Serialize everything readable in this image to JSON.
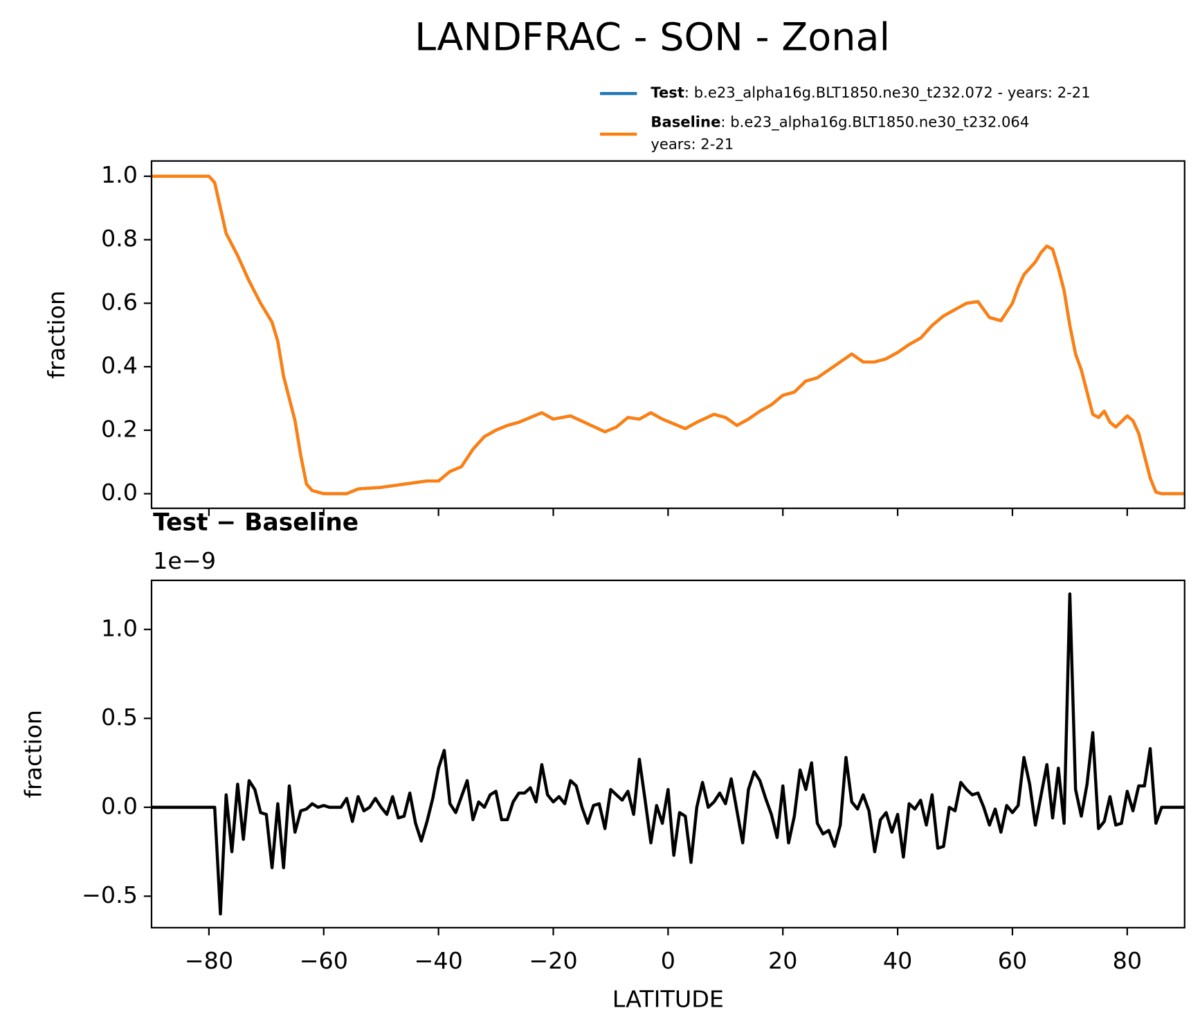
{
  "title": "LANDFRAC - SON - Zonal",
  "chart_data": [
    {
      "type": "line",
      "ylabel": "fraction",
      "xlim": [
        -90,
        90
      ],
      "ylim": [
        -0.046,
        1.048
      ],
      "xticks": [
        -80,
        -60,
        -40,
        -20,
        0,
        20,
        40,
        60,
        80
      ],
      "xticklabels": false,
      "yticks": [
        {
          "value": 0.0,
          "label": "0.0"
        },
        0.2,
        0.4,
        0.6,
        0.8,
        {
          "value": 1.0,
          "label": "1.0"
        }
      ],
      "legend": "upper right",
      "x": [
        -90,
        -80,
        -79,
        -78,
        -77,
        -75,
        -73,
        -71,
        -69,
        -68,
        -67,
        -65,
        -64,
        -63,
        -62,
        -60,
        -56,
        -54,
        -50,
        -46,
        -42,
        -40,
        -38,
        -36,
        -34,
        -32,
        -30,
        -28,
        -26,
        -24,
        -22,
        -20,
        -17,
        -14,
        -11,
        -9,
        -7,
        -5,
        -3,
        -1,
        1,
        3,
        5,
        8,
        10,
        12,
        14,
        16,
        18,
        20,
        22,
        24,
        26,
        28,
        30,
        32,
        34,
        36,
        38,
        40,
        42,
        44,
        46,
        48,
        50,
        52,
        54,
        56,
        58,
        60,
        61,
        62,
        64,
        65,
        66,
        67,
        68,
        69,
        70,
        71,
        72,
        74,
        75,
        76,
        77,
        78,
        80,
        81,
        82,
        83,
        84,
        85,
        86,
        90
      ],
      "series": [
        {
          "name": "Test",
          "description": [
            ": b.e23_alpha16g.BLT1850.ne30_t232.072 - years: 2-21"
          ],
          "color": "#1f77b4",
          "values": [
            1.0,
            1.0,
            0.98,
            0.9,
            0.82,
            0.75,
            0.67,
            0.6,
            0.54,
            0.48,
            0.37,
            0.23,
            0.12,
            0.03,
            0.01,
            0.0,
            0.0,
            0.015,
            0.02,
            0.03,
            0.04,
            0.04,
            0.07,
            0.085,
            0.14,
            0.18,
            0.2,
            0.215,
            0.225,
            0.24,
            0.255,
            0.235,
            0.245,
            0.22,
            0.195,
            0.21,
            0.24,
            0.235,
            0.255,
            0.235,
            0.22,
            0.205,
            0.225,
            0.25,
            0.24,
            0.215,
            0.235,
            0.26,
            0.28,
            0.31,
            0.32,
            0.355,
            0.365,
            0.39,
            0.415,
            0.44,
            0.415,
            0.415,
            0.425,
            0.445,
            0.47,
            0.49,
            0.53,
            0.56,
            0.58,
            0.6,
            0.605,
            0.555,
            0.545,
            0.6,
            0.65,
            0.69,
            0.73,
            0.76,
            0.78,
            0.77,
            0.71,
            0.64,
            0.53,
            0.44,
            0.39,
            0.25,
            0.24,
            0.26,
            0.225,
            0.21,
            0.245,
            0.23,
            0.19,
            0.12,
            0.05,
            0.005,
            0.0,
            0.0
          ]
        },
        {
          "name": "Baseline",
          "description": [
            ": b.e23_alpha16g.BLT1850.ne30_t232.064",
            "years: 2-21"
          ],
          "color": "#ff7f0e",
          "values": [
            1.0,
            1.0,
            0.98,
            0.9,
            0.82,
            0.75,
            0.67,
            0.6,
            0.54,
            0.48,
            0.37,
            0.23,
            0.12,
            0.03,
            0.01,
            0.0,
            0.0,
            0.015,
            0.02,
            0.03,
            0.04,
            0.04,
            0.07,
            0.085,
            0.14,
            0.18,
            0.2,
            0.215,
            0.225,
            0.24,
            0.255,
            0.235,
            0.245,
            0.22,
            0.195,
            0.21,
            0.24,
            0.235,
            0.255,
            0.235,
            0.22,
            0.205,
            0.225,
            0.25,
            0.24,
            0.215,
            0.235,
            0.26,
            0.28,
            0.31,
            0.32,
            0.355,
            0.365,
            0.39,
            0.415,
            0.44,
            0.415,
            0.415,
            0.425,
            0.445,
            0.47,
            0.49,
            0.53,
            0.56,
            0.58,
            0.6,
            0.605,
            0.555,
            0.545,
            0.6,
            0.65,
            0.69,
            0.73,
            0.76,
            0.78,
            0.77,
            0.71,
            0.64,
            0.53,
            0.44,
            0.39,
            0.25,
            0.24,
            0.26,
            0.225,
            0.21,
            0.245,
            0.23,
            0.19,
            0.12,
            0.05,
            0.005,
            0.0,
            0.0
          ]
        }
      ]
    },
    {
      "type": "line",
      "title": "Test − Baseline",
      "offset_label": "1e−9",
      "xlabel": "LATITUDE",
      "ylabel": "fraction",
      "xlim": [
        -90,
        90
      ],
      "ylim": [
        -0.677,
        1.276
      ],
      "xticks": [
        {
          "value": -80,
          "label": "−80"
        },
        {
          "value": -60,
          "label": "−60"
        },
        {
          "value": -40,
          "label": "−40"
        },
        {
          "value": -20,
          "label": "−20"
        },
        0,
        20,
        40,
        60,
        80
      ],
      "xticklabels": true,
      "yticks": [
        {
          "value": -0.5,
          "label": "−0.5"
        },
        {
          "value": 0.0,
          "label": "0.0"
        },
        0.5,
        {
          "value": 1.0,
          "label": "1.0"
        }
      ],
      "color": "#000000",
      "x": [
        -90,
        -89,
        -88,
        -87,
        -86,
        -85,
        -84,
        -83,
        -82,
        -81,
        -80,
        -79,
        -78,
        -77,
        -76,
        -75,
        -74,
        -73,
        -72,
        -71,
        -70,
        -69,
        -68,
        -67,
        -66,
        -65,
        -64,
        -63,
        -62,
        -61,
        -60,
        -59,
        -58,
        -57,
        -56,
        -55,
        -54,
        -53,
        -52,
        -51,
        -50,
        -49,
        -48,
        -47,
        -46,
        -45,
        -44,
        -43,
        -42,
        -41,
        -40,
        -39,
        -38,
        -37,
        -36,
        -35,
        -34,
        -33,
        -32,
        -31,
        -30,
        -29,
        -28,
        -27,
        -26,
        -25,
        -24,
        -23,
        -22,
        -21,
        -20,
        -19,
        -18,
        -17,
        -16,
        -15,
        -14,
        -13,
        -12,
        -11,
        -10,
        -9,
        -8,
        -7,
        -6,
        -5,
        -4,
        -3,
        -2,
        -1,
        0,
        1,
        2,
        3,
        4,
        5,
        6,
        7,
        8,
        9,
        10,
        11,
        12,
        13,
        14,
        15,
        16,
        17,
        18,
        19,
        20,
        21,
        22,
        23,
        24,
        25,
        26,
        27,
        28,
        29,
        30,
        31,
        32,
        33,
        34,
        35,
        36,
        37,
        38,
        39,
        40,
        41,
        42,
        43,
        44,
        45,
        46,
        47,
        48,
        49,
        50,
        51,
        52,
        53,
        54,
        55,
        56,
        57,
        58,
        59,
        60,
        61,
        62,
        63,
        64,
        65,
        66,
        67,
        68,
        69,
        70,
        71,
        72,
        73,
        74,
        75,
        76,
        77,
        78,
        79,
        80,
        81,
        82,
        83,
        84,
        85,
        86,
        87,
        88,
        89,
        90
      ],
      "values": [
        0,
        0,
        0,
        0,
        0,
        0,
        0,
        0,
        0,
        0,
        0,
        0,
        -0.6,
        0.07,
        -0.25,
        0.13,
        -0.18,
        0.15,
        0.1,
        -0.03,
        -0.04,
        -0.34,
        0.02,
        -0.34,
        0.12,
        -0.14,
        -0.02,
        -0.01,
        0.02,
        0.0,
        0.01,
        0,
        0,
        0,
        0.05,
        -0.08,
        0.06,
        -0.02,
        0,
        0.05,
        0,
        -0.04,
        0.06,
        -0.06,
        -0.05,
        0.08,
        -0.09,
        -0.19,
        -0.08,
        0.05,
        0.22,
        0.32,
        0.02,
        -0.03,
        0.06,
        0.15,
        -0.07,
        0.03,
        0,
        0.07,
        0.09,
        -0.07,
        -0.07,
        0.03,
        0.08,
        0.08,
        0.11,
        0.03,
        0.24,
        0.07,
        0.03,
        0.06,
        0.02,
        0.15,
        0.12,
        0,
        -0.09,
        0.01,
        0.02,
        -0.12,
        0.1,
        0.07,
        0.04,
        0.09,
        -0.04,
        0.27,
        0.04,
        -0.2,
        0.01,
        -0.09,
        0.1,
        -0.27,
        -0.03,
        -0.05,
        -0.31,
        0,
        0.14,
        0,
        0.03,
        0.08,
        0.02,
        0.16,
        -0.02,
        -0.2,
        0.1,
        0.2,
        0.15,
        0.05,
        -0.04,
        -0.17,
        0.12,
        -0.2,
        -0.05,
        0.21,
        0.1,
        0.25,
        -0.09,
        -0.15,
        -0.13,
        -0.22,
        -0.1,
        0.28,
        0.03,
        -0.01,
        0.07,
        -0.02,
        -0.25,
        -0.07,
        -0.03,
        -0.14,
        -0.04,
        -0.28,
        0.02,
        -0.01,
        0.04,
        -0.1,
        0.07,
        -0.23,
        -0.22,
        0,
        -0.02,
        0.14,
        0.1,
        0.07,
        0.08,
        0,
        -0.1,
        -0.01,
        -0.14,
        0.01,
        -0.03,
        0.01,
        0.28,
        0.13,
        -0.1,
        0.07,
        0.24,
        -0.06,
        0.22,
        -0.09,
        1.2,
        0.1,
        -0.05,
        0.13,
        0.42,
        -0.12,
        -0.08,
        0.06,
        -0.1,
        -0.09,
        0.09,
        -0.02,
        0.12,
        0.12,
        0.33,
        -0.09,
        0,
        0,
        0,
        0,
        0
      ]
    }
  ]
}
